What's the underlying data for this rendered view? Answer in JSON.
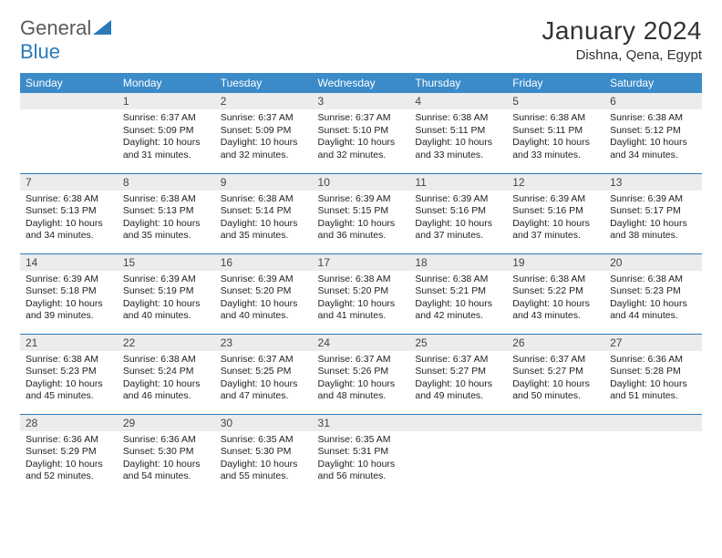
{
  "logo": {
    "part1": "General",
    "part2": "Blue"
  },
  "title": "January 2024",
  "location": "Dishna, Qena, Egypt",
  "colors": {
    "header_bg": "#3b8bc9",
    "header_text": "#ffffff",
    "daynum_bg": "#ececec",
    "border": "#2a7ab9",
    "logo_gray": "#5a5a5a",
    "logo_blue": "#2a7ab9"
  },
  "weekdays": [
    "Sunday",
    "Monday",
    "Tuesday",
    "Wednesday",
    "Thursday",
    "Friday",
    "Saturday"
  ],
  "start_offset": 1,
  "days": [
    {
      "n": 1,
      "sr": "6:37 AM",
      "ss": "5:09 PM",
      "dl": "10 hours and 31 minutes."
    },
    {
      "n": 2,
      "sr": "6:37 AM",
      "ss": "5:09 PM",
      "dl": "10 hours and 32 minutes."
    },
    {
      "n": 3,
      "sr": "6:37 AM",
      "ss": "5:10 PM",
      "dl": "10 hours and 32 minutes."
    },
    {
      "n": 4,
      "sr": "6:38 AM",
      "ss": "5:11 PM",
      "dl": "10 hours and 33 minutes."
    },
    {
      "n": 5,
      "sr": "6:38 AM",
      "ss": "5:11 PM",
      "dl": "10 hours and 33 minutes."
    },
    {
      "n": 6,
      "sr": "6:38 AM",
      "ss": "5:12 PM",
      "dl": "10 hours and 34 minutes."
    },
    {
      "n": 7,
      "sr": "6:38 AM",
      "ss": "5:13 PM",
      "dl": "10 hours and 34 minutes."
    },
    {
      "n": 8,
      "sr": "6:38 AM",
      "ss": "5:13 PM",
      "dl": "10 hours and 35 minutes."
    },
    {
      "n": 9,
      "sr": "6:38 AM",
      "ss": "5:14 PM",
      "dl": "10 hours and 35 minutes."
    },
    {
      "n": 10,
      "sr": "6:39 AM",
      "ss": "5:15 PM",
      "dl": "10 hours and 36 minutes."
    },
    {
      "n": 11,
      "sr": "6:39 AM",
      "ss": "5:16 PM",
      "dl": "10 hours and 37 minutes."
    },
    {
      "n": 12,
      "sr": "6:39 AM",
      "ss": "5:16 PM",
      "dl": "10 hours and 37 minutes."
    },
    {
      "n": 13,
      "sr": "6:39 AM",
      "ss": "5:17 PM",
      "dl": "10 hours and 38 minutes."
    },
    {
      "n": 14,
      "sr": "6:39 AM",
      "ss": "5:18 PM",
      "dl": "10 hours and 39 minutes."
    },
    {
      "n": 15,
      "sr": "6:39 AM",
      "ss": "5:19 PM",
      "dl": "10 hours and 40 minutes."
    },
    {
      "n": 16,
      "sr": "6:39 AM",
      "ss": "5:20 PM",
      "dl": "10 hours and 40 minutes."
    },
    {
      "n": 17,
      "sr": "6:38 AM",
      "ss": "5:20 PM",
      "dl": "10 hours and 41 minutes."
    },
    {
      "n": 18,
      "sr": "6:38 AM",
      "ss": "5:21 PM",
      "dl": "10 hours and 42 minutes."
    },
    {
      "n": 19,
      "sr": "6:38 AM",
      "ss": "5:22 PM",
      "dl": "10 hours and 43 minutes."
    },
    {
      "n": 20,
      "sr": "6:38 AM",
      "ss": "5:23 PM",
      "dl": "10 hours and 44 minutes."
    },
    {
      "n": 21,
      "sr": "6:38 AM",
      "ss": "5:23 PM",
      "dl": "10 hours and 45 minutes."
    },
    {
      "n": 22,
      "sr": "6:38 AM",
      "ss": "5:24 PM",
      "dl": "10 hours and 46 minutes."
    },
    {
      "n": 23,
      "sr": "6:37 AM",
      "ss": "5:25 PM",
      "dl": "10 hours and 47 minutes."
    },
    {
      "n": 24,
      "sr": "6:37 AM",
      "ss": "5:26 PM",
      "dl": "10 hours and 48 minutes."
    },
    {
      "n": 25,
      "sr": "6:37 AM",
      "ss": "5:27 PM",
      "dl": "10 hours and 49 minutes."
    },
    {
      "n": 26,
      "sr": "6:37 AM",
      "ss": "5:27 PM",
      "dl": "10 hours and 50 minutes."
    },
    {
      "n": 27,
      "sr": "6:36 AM",
      "ss": "5:28 PM",
      "dl": "10 hours and 51 minutes."
    },
    {
      "n": 28,
      "sr": "6:36 AM",
      "ss": "5:29 PM",
      "dl": "10 hours and 52 minutes."
    },
    {
      "n": 29,
      "sr": "6:36 AM",
      "ss": "5:30 PM",
      "dl": "10 hours and 54 minutes."
    },
    {
      "n": 30,
      "sr": "6:35 AM",
      "ss": "5:30 PM",
      "dl": "10 hours and 55 minutes."
    },
    {
      "n": 31,
      "sr": "6:35 AM",
      "ss": "5:31 PM",
      "dl": "10 hours and 56 minutes."
    }
  ],
  "labels": {
    "sunrise": "Sunrise:",
    "sunset": "Sunset:",
    "daylight": "Daylight:"
  }
}
